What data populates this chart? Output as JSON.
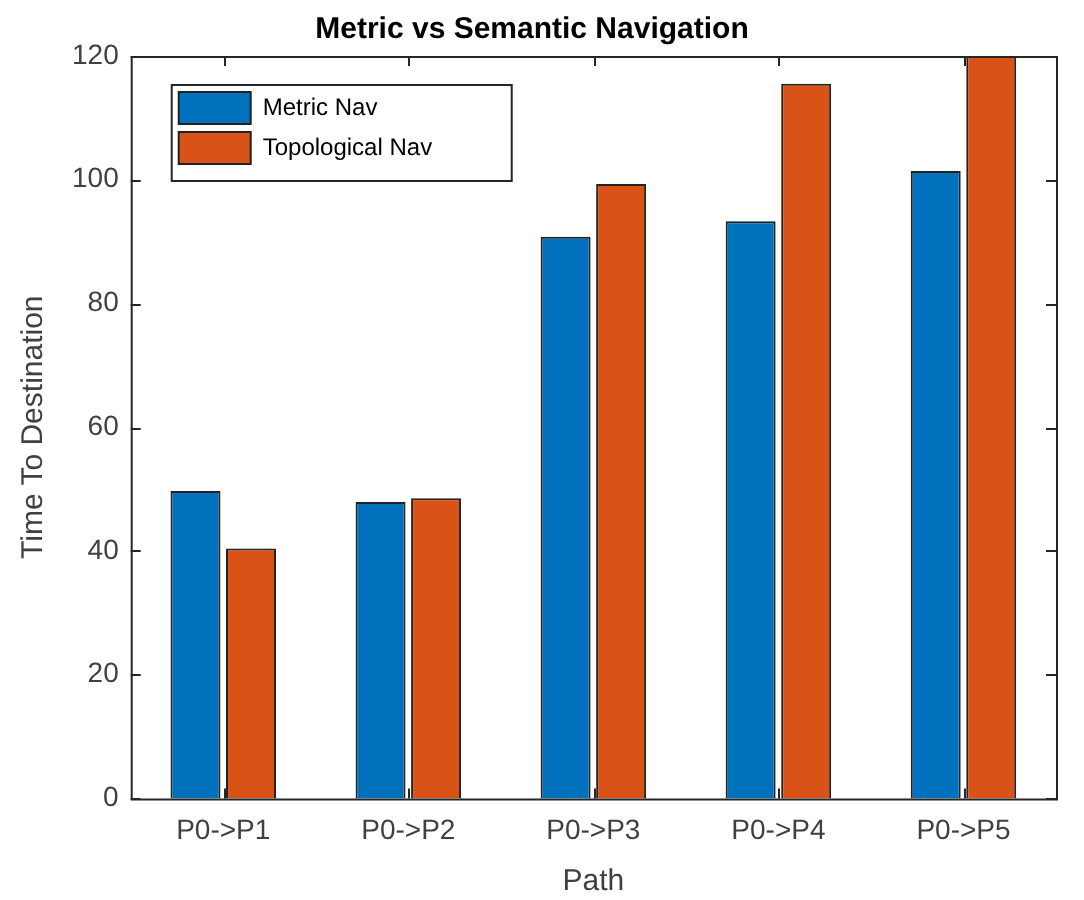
{
  "chart_data": {
    "type": "bar",
    "title": "Metric vs Semantic Navigation",
    "xlabel": "Path",
    "ylabel": "Time To Destination",
    "categories": [
      "P0->P1",
      "P0->P2",
      "P0->P3",
      "P0->P4",
      "P0->P5"
    ],
    "series": [
      {
        "name": "Metric Nav",
        "color": "#0072bd",
        "values": [
          49.7,
          47.9,
          90.8,
          93.3,
          101.4
        ]
      },
      {
        "name": "Topological Nav",
        "color": "#d95319",
        "values": [
          40.4,
          48.5,
          99.3,
          115.5,
          120
        ]
      }
    ],
    "ylim": [
      0,
      120
    ],
    "yticks": [
      0,
      20,
      40,
      60,
      80,
      100,
      120
    ],
    "grid": false,
    "legend": "top left"
  }
}
